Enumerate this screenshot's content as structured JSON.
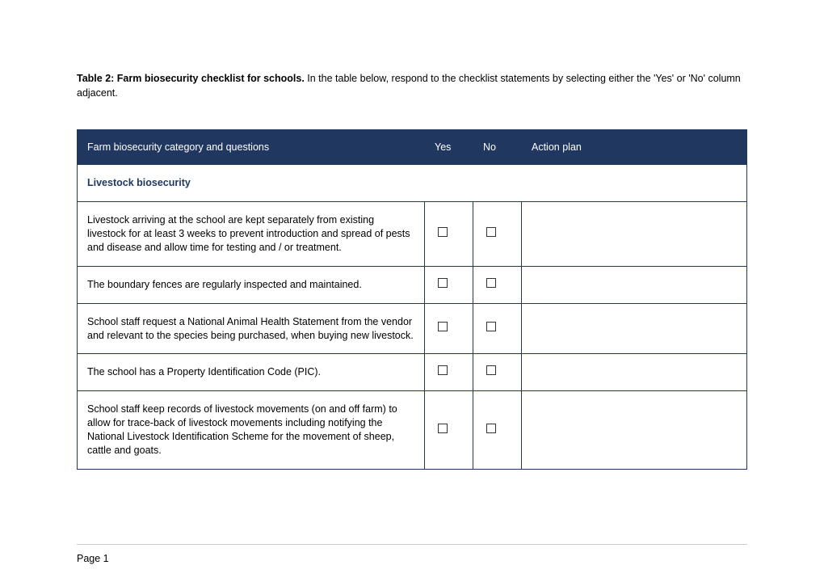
{
  "intro": {
    "title": "Table 2: Farm biosecurity checklist for schools.",
    "text": " In the table below, respond to the checklist statements by selecting either the 'Yes' or 'No' column adjacent."
  },
  "headers": {
    "category": "Farm biosecurity category and questions",
    "yes": "Yes",
    "no": "No",
    "action": "Action plan"
  },
  "section": "Livestock biosecurity",
  "rows": [
    {
      "q": "Livestock arriving at the school are kept separately from existing livestock for at least 3 weeks to prevent introduction and spread of pests and disease and allow time for testing and / or treatment."
    },
    {
      "q": "The boundary fences are regularly inspected and maintained."
    },
    {
      "q": "School staff request a National Animal Health Statement from the vendor and relevant to the species being purchased, when buying new livestock."
    },
    {
      "q": "The school has a Property Identification Code (PIC)."
    },
    {
      "q": "School staff keep records of livestock movements (on and off farm) to allow for trace-back of livestock movements including notifying the National Livestock Identification Scheme for the movement of sheep, cattle and goats."
    }
  ],
  "footer": "Page 1",
  "colors": {
    "header_bg": "#203860",
    "header_text": "#ffffff",
    "section_text": "#203860",
    "border": "#203860"
  }
}
